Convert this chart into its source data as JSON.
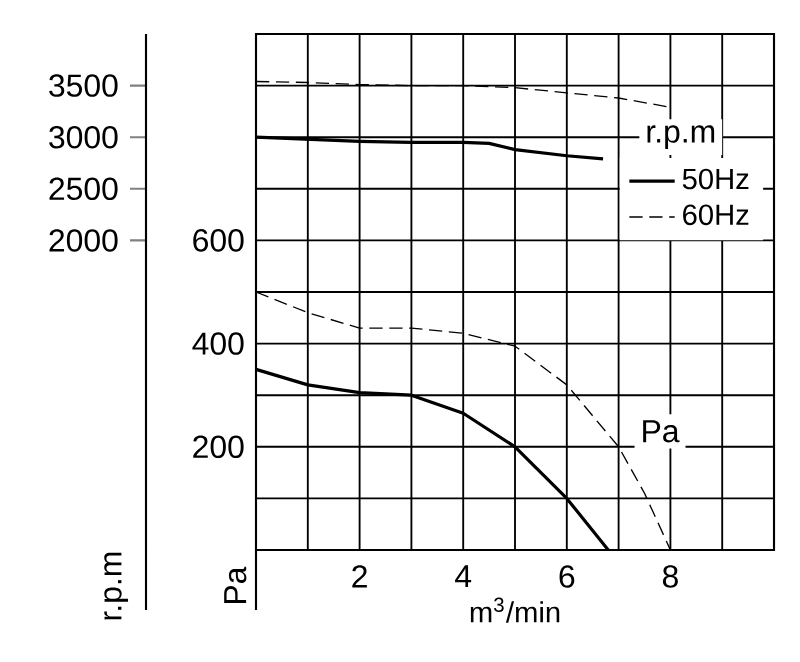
{
  "chart_data": {
    "type": "line",
    "xlabel": "m$^{3}$/min",
    "ylabel": "Pa",
    "y2label": "r.p.m",
    "xlim": [
      0,
      10
    ],
    "xticks": [
      {
        "value": 0,
        "label": null
      },
      {
        "value": 1,
        "label": null
      },
      2,
      {
        "value": 3,
        "label": null
      },
      4,
      {
        "value": 5,
        "label": null
      },
      6,
      {
        "value": 7,
        "label": null
      },
      8,
      {
        "value": 9,
        "label": null
      },
      {
        "value": 10,
        "label": null
      }
    ],
    "ylim": [
      0,
      1000
    ],
    "yticks": [
      {
        "value": 0,
        "label": null
      },
      {
        "value": 100,
        "label": null
      },
      200,
      {
        "value": 300,
        "label": null
      },
      400,
      {
        "value": 500,
        "label": null
      },
      600,
      {
        "value": 700,
        "label": null
      },
      {
        "value": 800,
        "label": null
      },
      {
        "value": 900,
        "label": null
      },
      {
        "value": 1000,
        "label": null
      }
    ],
    "y2lim": [
      -1000,
      4000
    ],
    "y2ticks": [
      2000,
      2500,
      3000,
      3500
    ],
    "grid": true,
    "legend": "right",
    "marker": "none",
    "series": [
      {
        "axis": "y2",
        "color": "#000000",
        "line_style": "solid",
        "x": [
          0,
          1,
          2,
          3,
          4,
          4.5,
          5,
          6,
          6.7
        ],
        "values": [
          3000,
          2980,
          2960,
          2950,
          2950,
          2940,
          2880,
          2820,
          2790
        ]
      },
      {
        "axis": "y2",
        "color": "#000000",
        "line_style": "dashed",
        "x": [
          0,
          1,
          2,
          3,
          4,
          5,
          6,
          7,
          8
        ],
        "values": [
          3540,
          3530,
          3510,
          3500,
          3500,
          3480,
          3430,
          3380,
          3290
        ]
      },
      {
        "name": "50Hz",
        "color": "#000000",
        "line_style": "solid",
        "x": [
          0,
          1,
          2,
          3,
          4,
          5,
          6,
          6.8
        ],
        "values": [
          350,
          320,
          305,
          300,
          265,
          200,
          100,
          0
        ]
      },
      {
        "name": "60Hz",
        "color": "#000000",
        "line_style": "dashed",
        "x": [
          0,
          1,
          2,
          3,
          4,
          5,
          6,
          7,
          7.5,
          8
        ],
        "values": [
          500,
          460,
          430,
          430,
          420,
          395,
          320,
          200,
          110,
          0
        ]
      }
    ],
    "annotations": [
      "r.p.m",
      "Pa"
    ]
  }
}
